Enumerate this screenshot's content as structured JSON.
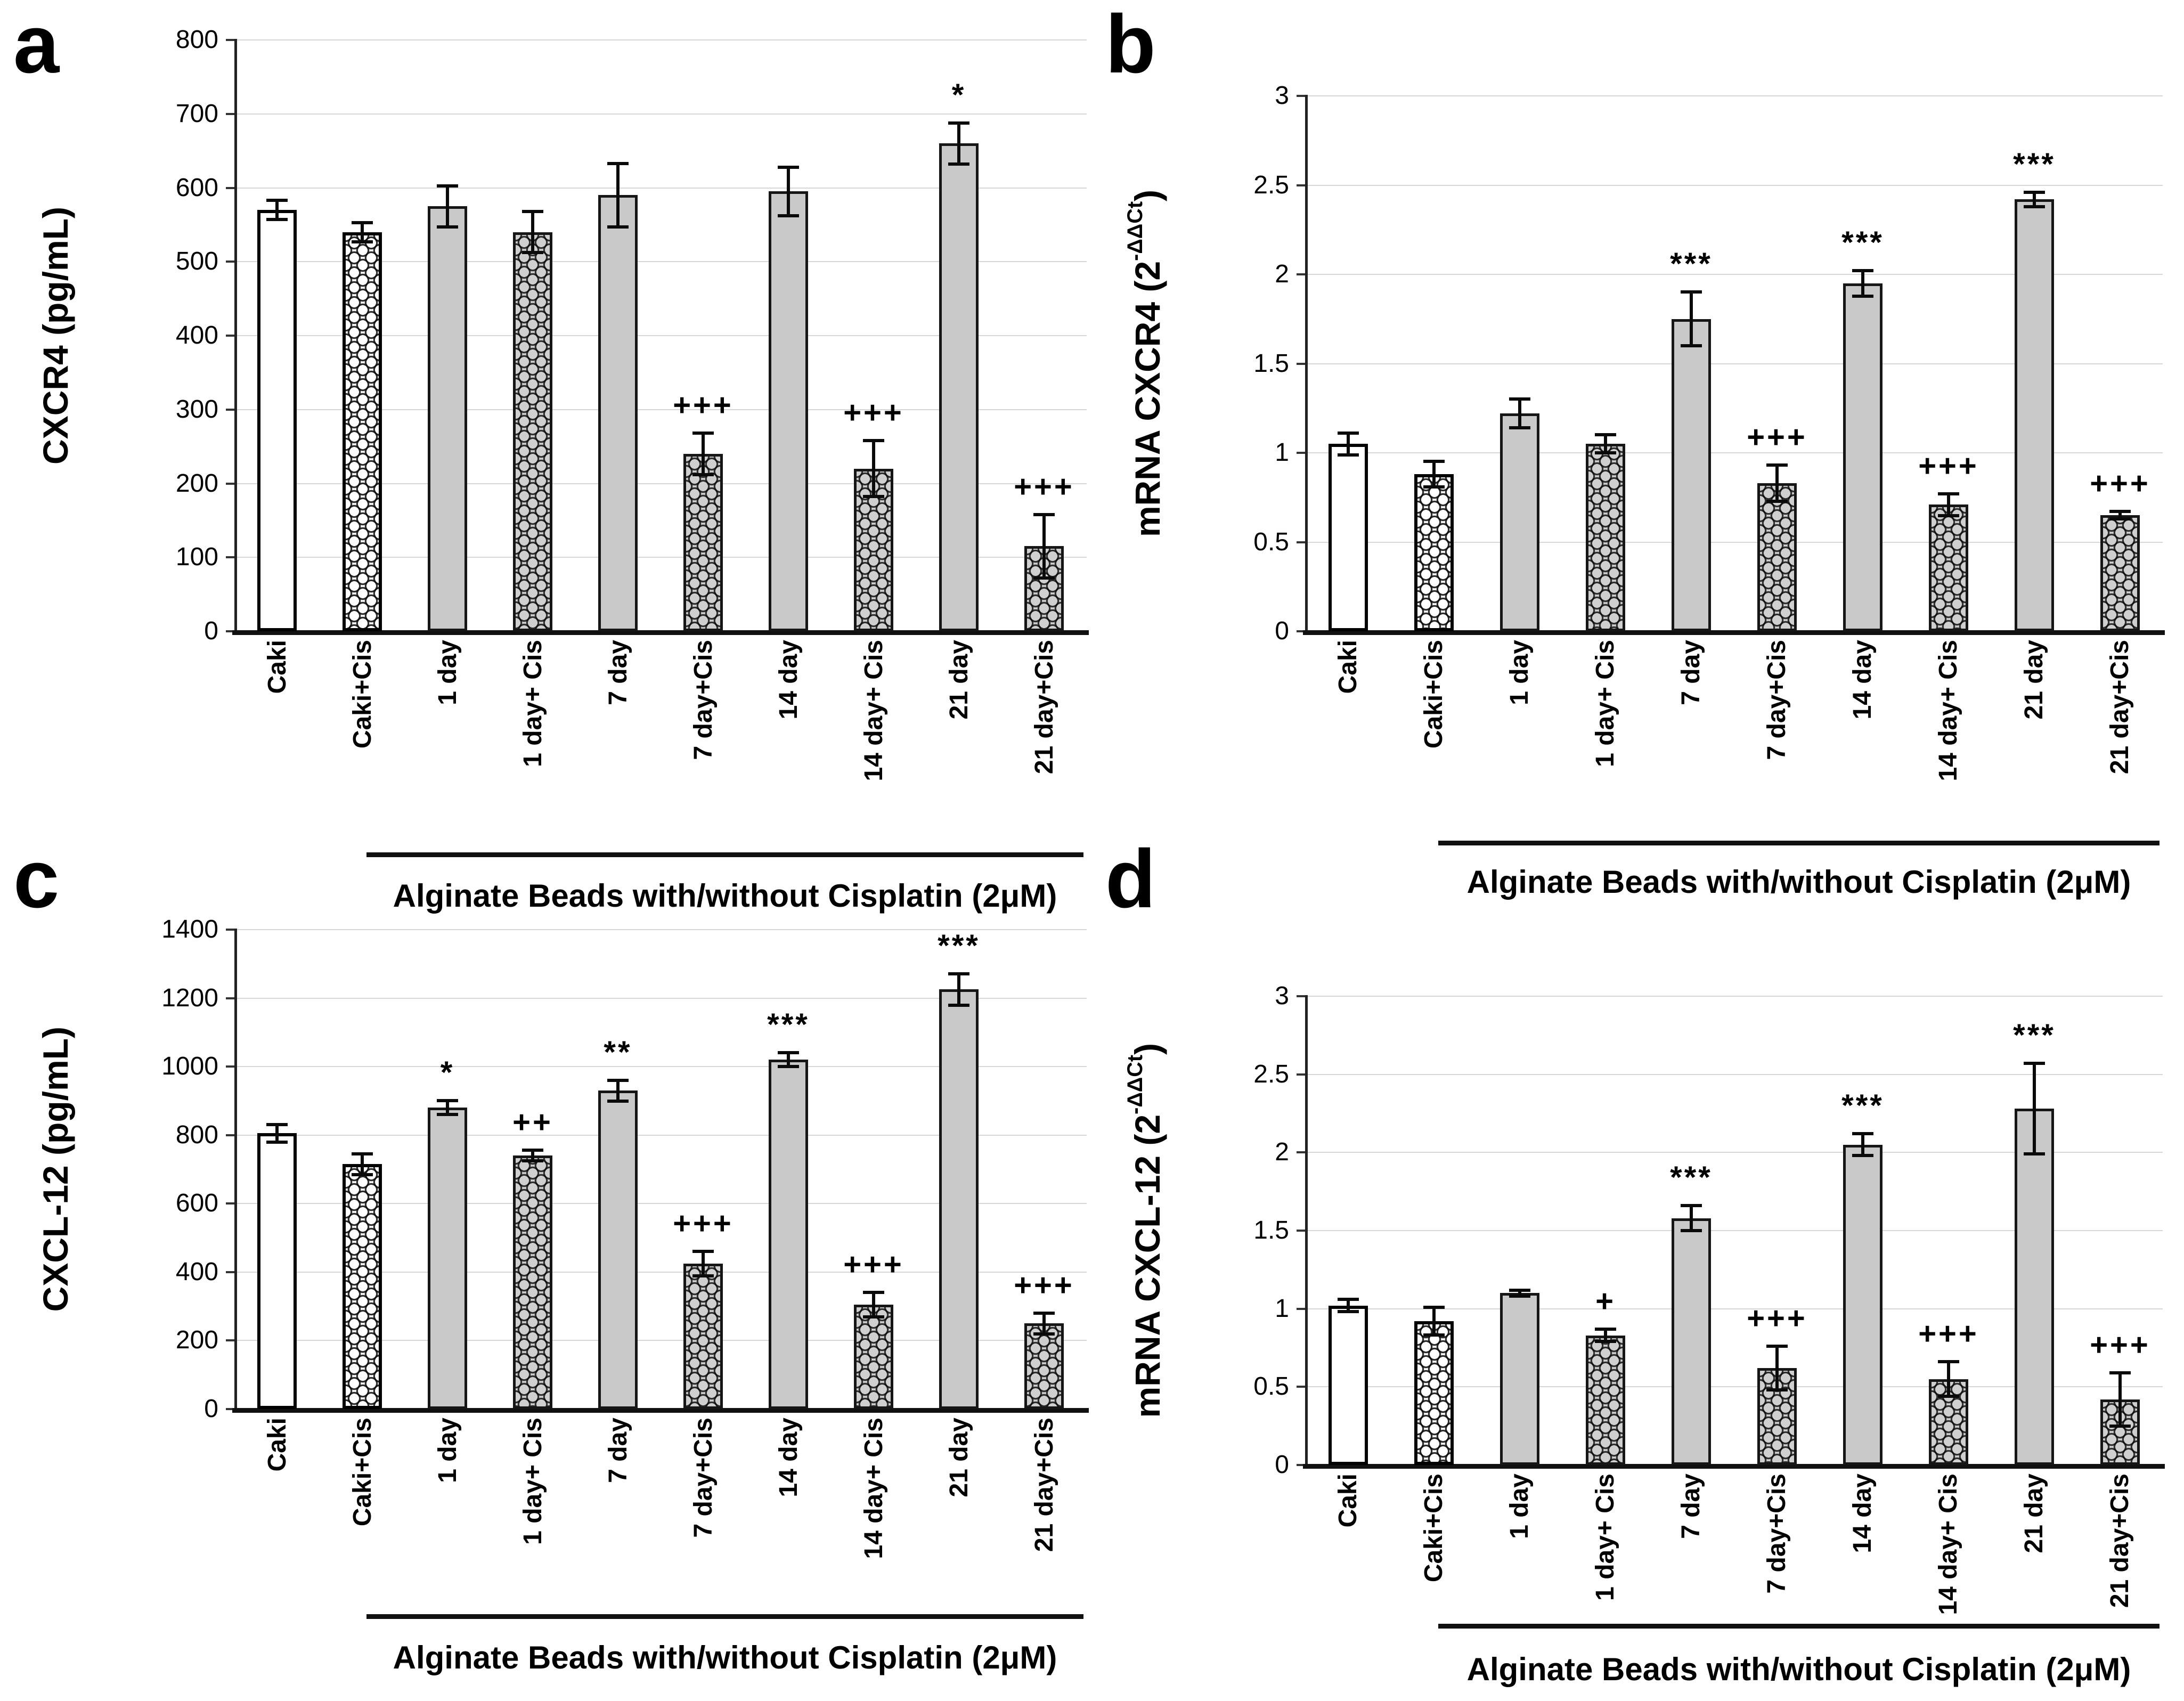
{
  "colors": {
    "background": "#ffffff",
    "bar_gray": "#c9c9c9",
    "bar_white": "#ffffff",
    "hatch_stroke": "#0a0a0a",
    "gridline": "#d6d6d6",
    "axis": "#111111",
    "text": "#000000"
  },
  "chart_data": [
    {
      "type": "bar",
      "panel": "a",
      "ylabel_main": "CXCR4 (pg/mL)",
      "ylabel_unit_pre": "",
      "ylabel_unit_sup": "",
      "ylabel_unit_post": "",
      "categories": [
        "Caki",
        "Caki+Cis",
        "1 day",
        "1 day+ Cis",
        "7 day",
        "7 day+Cis",
        "14 day",
        "14 day+ Cis",
        "21 day",
        "21 day+Cis"
      ],
      "values": [
        570,
        540,
        575,
        540,
        590,
        240,
        595,
        220,
        660,
        115
      ],
      "errors": [
        15,
        15,
        30,
        30,
        45,
        30,
        35,
        40,
        30,
        45
      ],
      "significance": [
        "",
        "",
        "",
        "",
        "",
        "+++",
        "",
        "+++",
        "*",
        "+++"
      ],
      "bar_styles": [
        "white",
        "white-hatch",
        "gray",
        "gray-hatch",
        "gray",
        "gray-hatch",
        "gray",
        "gray-hatch",
        "gray",
        "gray-hatch"
      ],
      "ylim": [
        0,
        800
      ],
      "ytick_step": 100,
      "yticks": [
        "800",
        "700",
        "600",
        "500",
        "400",
        "300",
        "200",
        "100",
        "0"
      ],
      "grid": "on",
      "legend": "none",
      "group_label": "Alginate Beads with/without Cisplatin (2μM)",
      "group_range": [
        "1 day",
        "21 day+Cis"
      ]
    },
    {
      "type": "bar",
      "panel": "b",
      "ylabel_main": "mRNA CXCR4",
      "ylabel_unit_pre": " (2",
      "ylabel_unit_sup": "-ΔΔCt",
      "ylabel_unit_post": ")",
      "categories": [
        "Caki",
        "Caki+Cis",
        "1 day",
        "1 day+ Cis",
        "7 day",
        "7 day+Cis",
        "14 day",
        "14 day+ Cis",
        "21 day",
        "21 day+Cis"
      ],
      "values": [
        1.05,
        0.88,
        1.22,
        1.05,
        1.75,
        0.83,
        1.95,
        0.71,
        2.42,
        0.65
      ],
      "errors": [
        0.07,
        0.08,
        0.09,
        0.06,
        0.16,
        0.11,
        0.08,
        0.07,
        0.05,
        0.03
      ],
      "significance": [
        "",
        "",
        "",
        "",
        "***",
        "+++",
        "***",
        "+++",
        "***",
        "+++"
      ],
      "bar_styles": [
        "white",
        "white-hatch",
        "gray",
        "gray-hatch",
        "gray",
        "gray-hatch",
        "gray",
        "gray-hatch",
        "gray",
        "gray-hatch"
      ],
      "ylim": [
        0,
        3
      ],
      "ytick_step": 0.5,
      "yticks": [
        "3",
        "2.5",
        "2",
        "1.5",
        "1",
        "0.5",
        "0"
      ],
      "grid": "on",
      "legend": "none",
      "group_label": "Alginate Beads with/without Cisplatin (2μM)",
      "group_range": [
        "1 day",
        "21 day+Cis"
      ]
    },
    {
      "type": "bar",
      "panel": "c",
      "ylabel_main": "CXCL-12 (pg/mL)",
      "ylabel_unit_pre": "",
      "ylabel_unit_sup": "",
      "ylabel_unit_post": "",
      "categories": [
        "Caki",
        "Caki+Cis",
        "1 day",
        "1 day+ Cis",
        "7 day",
        "7 day+Cis",
        "14 day",
        "14 day+ Cis",
        "21 day",
        "21 day+Cis"
      ],
      "values": [
        805,
        715,
        880,
        740,
        930,
        425,
        1020,
        305,
        1225,
        250
      ],
      "errors": [
        30,
        35,
        25,
        20,
        35,
        40,
        25,
        40,
        50,
        35
      ],
      "significance": [
        "",
        "",
        "*",
        "++",
        "**",
        "+++",
        "***",
        "+++",
        "***",
        "+++"
      ],
      "bar_styles": [
        "white",
        "white-hatch",
        "gray",
        "gray-hatch",
        "gray",
        "gray-hatch",
        "gray",
        "gray-hatch",
        "gray",
        "gray-hatch"
      ],
      "ylim": [
        0,
        1400
      ],
      "ytick_step": 200,
      "yticks": [
        "1400",
        "1200",
        "1000",
        "800",
        "600",
        "400",
        "200",
        "0"
      ],
      "grid": "on",
      "legend": "none",
      "group_label": "Alginate Beads with/without Cisplatin (2μM)",
      "group_range": [
        "1 day",
        "21 day+Cis"
      ]
    },
    {
      "type": "bar",
      "panel": "d",
      "ylabel_main": "mRNA CXCL-12",
      "ylabel_unit_pre": " (2",
      "ylabel_unit_sup": "-ΔΔCt",
      "ylabel_unit_post": ")",
      "categories": [
        "Caki",
        "Caki+Cis",
        "1 day",
        "1 day+ Cis",
        "7 day",
        "7 day+Cis",
        "14 day",
        "14 day+ Cis",
        "21 day",
        "21 day+Cis"
      ],
      "values": [
        1.02,
        0.92,
        1.1,
        0.83,
        1.58,
        0.62,
        2.05,
        0.55,
        2.28,
        0.42
      ],
      "errors": [
        0.05,
        0.1,
        0.03,
        0.05,
        0.09,
        0.15,
        0.08,
        0.12,
        0.3,
        0.18
      ],
      "significance": [
        "",
        "",
        "",
        "+",
        "***",
        "+++",
        "***",
        "+++",
        "***",
        "+++"
      ],
      "bar_styles": [
        "white",
        "white-hatch",
        "gray",
        "gray-hatch",
        "gray",
        "gray-hatch",
        "gray",
        "gray-hatch",
        "gray",
        "gray-hatch"
      ],
      "ylim": [
        0,
        3
      ],
      "ytick_step": 0.5,
      "yticks": [
        "3",
        "2.5",
        "2",
        "1.5",
        "1",
        "0.5",
        "0"
      ],
      "grid": "on",
      "legend": "none",
      "group_label": "Alginate Beads with/without Cisplatin (2μM)",
      "group_range": [
        "1 day",
        "21 day+Cis"
      ]
    }
  ]
}
